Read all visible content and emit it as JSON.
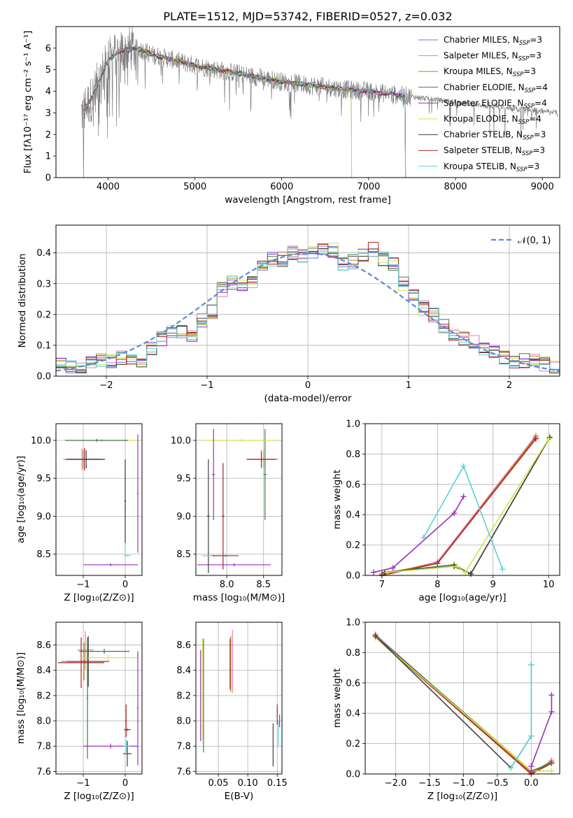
{
  "figure": {
    "title": "PLATE=1512, MJD=53742, FIBERID=0527, z=0.032"
  },
  "models": [
    {
      "label": "Chabrier MILES, N",
      "sub": "SSP",
      "tail": "=3",
      "color": "#6e7fd4"
    },
    {
      "label": "Salpeter MILES, N",
      "sub": "SSP",
      "tail": "=3",
      "color": "#e07fb5"
    },
    {
      "label": "Kroupa MILES, N",
      "sub": "SSP",
      "tail": "=3",
      "color": "#b8860b"
    },
    {
      "label": "Chabrier ELODIE, N",
      "sub": "SSP",
      "tail": "=4",
      "color": "#3a7d44"
    },
    {
      "label": "Salpeter ELODIE, N",
      "sub": "SSP",
      "tail": "=4",
      "color": "#9b30c0"
    },
    {
      "label": "Kroupa ELODIE, N",
      "sub": "SSP",
      "tail": "=4",
      "color": "#d8e04a"
    },
    {
      "label": "Chabrier STELIB, N",
      "sub": "SSP",
      "tail": "=3",
      "color": "#404040"
    },
    {
      "label": "Salpeter STELIB, N",
      "sub": "SSP",
      "tail": "=3",
      "color": "#b22222"
    },
    {
      "label": "Kroupa STELIB, N",
      "sub": "SSP",
      "tail": "=3",
      "color": "#5fd0d8"
    }
  ],
  "chart_data": [
    {
      "id": "spectrum",
      "type": "line",
      "xlabel": "wavelength [Angstrom, rest frame]",
      "ylabel": "Flux [fλ10⁻¹⁷ erg cm⁻² s⁻¹ A⁻¹]",
      "xlim": [
        3400,
        9200
      ],
      "ylim": [
        0,
        7
      ],
      "xticks": [
        4000,
        5000,
        6000,
        7000,
        8000,
        9000
      ],
      "yticks": [
        0,
        1,
        2,
        3,
        4,
        5,
        6
      ],
      "data_color": "#808080",
      "continuum": {
        "x": [
          3700,
          3800,
          3900,
          4000,
          4100,
          4200,
          4300,
          4400,
          4500,
          4600,
          4800,
          5000,
          5200,
          5400,
          5600,
          5800,
          6000,
          6200,
          6400,
          6600,
          6800,
          7000,
          7200,
          7400,
          7600,
          7800,
          8000,
          8200,
          8400,
          8600,
          8800,
          9000,
          9200
        ],
        "y": [
          3.0,
          3.6,
          4.5,
          5.4,
          5.8,
          5.9,
          6.0,
          5.9,
          5.7,
          5.6,
          5.4,
          5.2,
          5.05,
          4.9,
          4.75,
          4.6,
          4.45,
          4.35,
          4.25,
          4.15,
          4.05,
          4.0,
          3.9,
          3.8,
          3.7,
          3.6,
          3.5,
          3.4,
          3.3,
          3.2,
          3.15,
          3.05,
          3.0
        ]
      },
      "model_ends": [
        7420,
        7420,
        7420,
        6800,
        7420,
        6800,
        7420,
        7420,
        7420
      ]
    },
    {
      "id": "residual_hist",
      "type": "line",
      "xlabel": "(data-model)/error",
      "ylabel": "Normed distribution",
      "xlim": [
        -2.5,
        2.5
      ],
      "ylim": [
        0,
        0.49
      ],
      "xticks": [
        -2,
        -1,
        0,
        1,
        2
      ],
      "xtick_labels": [
        "−2",
        "−1",
        "0",
        "1",
        "2"
      ],
      "yticks": [
        0.0,
        0.1,
        0.2,
        0.3,
        0.4
      ],
      "ytick_labels": [
        "0.0",
        "0.1",
        "0.2",
        "0.3",
        "0.4"
      ],
      "legend": "𝒩(0, 1)",
      "bins": [
        -2.5,
        -2.4,
        -2.3,
        -2.2,
        -2.1,
        -2.0,
        -1.9,
        -1.8,
        -1.7,
        -1.6,
        -1.5,
        -1.4,
        -1.3,
        -1.2,
        -1.1,
        -1.0,
        -0.9,
        -0.8,
        -0.7,
        -0.6,
        -0.5,
        -0.4,
        -0.3,
        -0.2,
        -0.1,
        0.0,
        0.1,
        0.2,
        0.3,
        0.4,
        0.5,
        0.6,
        0.7,
        0.8,
        0.9,
        1.0,
        1.1,
        1.2,
        1.3,
        1.4,
        1.5,
        1.6,
        1.7,
        1.8,
        1.9,
        2.0,
        2.1,
        2.2,
        2.3,
        2.4,
        2.5
      ],
      "base_hist": [
        0.04,
        0.03,
        0.03,
        0.04,
        0.05,
        0.05,
        0.06,
        0.06,
        0.04,
        0.09,
        0.12,
        0.15,
        0.14,
        0.13,
        0.18,
        0.21,
        0.28,
        0.3,
        0.29,
        0.31,
        0.36,
        0.38,
        0.38,
        0.4,
        0.39,
        0.4,
        0.42,
        0.41,
        0.36,
        0.37,
        0.39,
        0.41,
        0.38,
        0.36,
        0.3,
        0.26,
        0.22,
        0.2,
        0.16,
        0.14,
        0.12,
        0.11,
        0.09,
        0.08,
        0.06,
        0.05,
        0.05,
        0.05,
        0.04,
        0.03
      ]
    },
    {
      "id": "age_vs_Z",
      "type": "scatter",
      "xlabel": "Z [log₁₀(Z/Z⊙)]",
      "ylabel": "age  [log₁₀(age/yr)]",
      "xlim": [
        -1.65,
        0.4
      ],
      "ylim": [
        8.22,
        10.22
      ],
      "xticks": [
        -1,
        0
      ],
      "xtick_labels": [
        "−1",
        "0"
      ],
      "yticks": [
        8.5,
        9.0,
        9.5,
        10.0
      ],
      "ytick_labels": [
        "8.5",
        "9.0",
        "9.5",
        "10.0"
      ],
      "errorbars": [
        {
          "m": 1,
          "x": -1.03,
          "y": 9.75,
          "xe": 0.45,
          "ye": 0.14
        },
        {
          "m": 2,
          "x": -1.0,
          "y": 9.75,
          "xe": 0.4,
          "ye": 0.12
        },
        {
          "m": 7,
          "x": -0.97,
          "y": 9.75,
          "xe": 0.45,
          "ye": 0.15
        },
        {
          "m": 6,
          "x": -0.93,
          "y": 9.75,
          "xe": 0.45,
          "ye": 0.12
        },
        {
          "m": 5,
          "x": -0.55,
          "y": 10.0,
          "xe": 0.85,
          "ye": 0.02
        },
        {
          "m": 3,
          "x": -0.68,
          "y": 10.0,
          "xe": 0.75,
          "ye": 0.02
        },
        {
          "m": 4,
          "x": -0.35,
          "y": 8.36,
          "xe": 0.65,
          "ye": 0.02
        },
        {
          "m": 4,
          "x": 0.3,
          "y": 9.3,
          "xe": 0.02,
          "ye": 0.78
        },
        {
          "m": 8,
          "x": 0.0,
          "y": 9.1,
          "xe": 0.02,
          "ye": 0.6
        },
        {
          "m": 6,
          "x": 0.0,
          "y": 9.2,
          "xe": 0.02,
          "ye": 0.55
        },
        {
          "m": 8,
          "x": 0.05,
          "y": 8.48,
          "xe": 0.08,
          "ye": 0.01
        }
      ]
    },
    {
      "id": "age_vs_mass",
      "type": "scatter",
      "xlabel": "mass [log₁₀(M/M⊙)]",
      "ylabel": "",
      "xlim": [
        7.58,
        8.75
      ],
      "ylim": [
        8.22,
        10.22
      ],
      "xticks": [
        8.0,
        8.5
      ],
      "xtick_labels": [
        "8.0",
        "8.5"
      ],
      "yticks": [
        8.5,
        9.0,
        9.5,
        10.0
      ],
      "ytick_labels": [
        "8.5",
        "9.0",
        "9.5",
        "10.0"
      ],
      "errorbars": [
        {
          "m": 1,
          "x": 8.5,
          "y": 9.75,
          "xe": 0.2,
          "ye": 0.12
        },
        {
          "m": 2,
          "x": 8.47,
          "y": 9.75,
          "xe": 0.2,
          "ye": 0.12
        },
        {
          "m": 7,
          "x": 8.47,
          "y": 9.75,
          "xe": 0.2,
          "ye": 0.1
        },
        {
          "m": 3,
          "x": 8.52,
          "y": 9.55,
          "xe": 0.02,
          "ye": 0.6
        },
        {
          "m": 5,
          "x": 8.2,
          "y": 10.0,
          "xe": 0.5,
          "ye": 0.02
        },
        {
          "m": 4,
          "x": 7.82,
          "y": 9.55,
          "xe": 0.02,
          "ye": 0.6
        },
        {
          "m": 4,
          "x": 8.1,
          "y": 8.36,
          "xe": 0.5,
          "ye": 0.02
        },
        {
          "m": 6,
          "x": 7.75,
          "y": 9.0,
          "xe": 0.02,
          "ye": 0.75
        },
        {
          "m": 7,
          "x": 7.95,
          "y": 9.0,
          "xe": 0.02,
          "ye": 0.7
        },
        {
          "m": 8,
          "x": 7.82,
          "y": 8.48,
          "xe": 0.15,
          "ye": 0.01
        },
        {
          "m": 7,
          "x": 7.98,
          "y": 8.48,
          "xe": 0.18,
          "ye": 0.01
        }
      ]
    },
    {
      "id": "weight_vs_age",
      "type": "line",
      "xlabel": "age  [log₁₀(age/yr)]",
      "ylabel": "mass weight",
      "xlim": [
        6.7,
        10.2
      ],
      "ylim": [
        0,
        1.0
      ],
      "xticks": [
        7,
        8,
        9,
        10
      ],
      "xtick_labels": [
        "7",
        "8",
        "9",
        "10"
      ],
      "yticks": [
        0.0,
        0.2,
        0.4,
        0.6,
        0.8,
        1.0
      ],
      "ytick_labels": [
        "0.0",
        "0.2",
        "0.4",
        "0.6",
        "0.8",
        "1.0"
      ],
      "series": [
        {
          "m": 0,
          "x": [
            7.0,
            8.0,
            9.77
          ],
          "y": [
            0.0,
            0.08,
            0.92
          ]
        },
        {
          "m": 1,
          "x": [
            7.0,
            8.0,
            9.77
          ],
          "y": [
            0.0,
            0.09,
            0.92
          ]
        },
        {
          "m": 2,
          "x": [
            7.0,
            8.0,
            9.77
          ],
          "y": [
            0.01,
            0.08,
            0.91
          ]
        },
        {
          "m": 7,
          "x": [
            7.0,
            8.0,
            9.77
          ],
          "y": [
            0.0,
            0.08,
            0.9
          ]
        },
        {
          "m": 3,
          "x": [
            7.05,
            8.3,
            8.6,
            10.02
          ],
          "y": [
            0.02,
            0.07,
            0.01,
            0.91
          ]
        },
        {
          "m": 6,
          "x": [
            7.05,
            8.3,
            8.6,
            10.02
          ],
          "y": [
            0.02,
            0.06,
            0.01,
            0.91
          ]
        },
        {
          "m": 5,
          "x": [
            7.1,
            8.35,
            8.5,
            10.0
          ],
          "y": [
            0.02,
            0.06,
            0.02,
            0.9
          ]
        },
        {
          "m": 4,
          "x": [
            6.85,
            7.2,
            8.3,
            8.47
          ],
          "y": [
            0.02,
            0.05,
            0.41,
            0.52
          ]
        },
        {
          "m": 8,
          "x": [
            7.75,
            8.47,
            9.17
          ],
          "y": [
            0.25,
            0.72,
            0.04
          ]
        }
      ]
    },
    {
      "id": "mass_vs_Z",
      "type": "scatter",
      "xlabel": "Z [log₁₀(Z/Z⊙)]",
      "ylabel": "mass [log₁₀(M/M⊙)]",
      "xlim": [
        -1.65,
        0.4
      ],
      "ylim": [
        7.58,
        8.78
      ],
      "xticks": [
        -1,
        0
      ],
      "xtick_labels": [
        "−1",
        "0"
      ],
      "yticks": [
        7.6,
        7.8,
        8.0,
        8.2,
        8.4,
        8.6
      ],
      "ytick_labels": [
        "7.6",
        "7.8",
        "8.0",
        "8.2",
        "8.4",
        "8.6"
      ],
      "errorbars": [
        {
          "m": 1,
          "x": -0.95,
          "y": 8.56,
          "xe": 0.2,
          "ye": 0.15
        },
        {
          "m": 2,
          "x": -0.98,
          "y": 8.47,
          "xe": 0.55,
          "ye": 0.15
        },
        {
          "m": 7,
          "x": -1.05,
          "y": 8.46,
          "xe": 0.55,
          "ye": 0.2
        },
        {
          "m": 6,
          "x": -0.88,
          "y": 8.47,
          "xe": 0.5,
          "ye": 0.2
        },
        {
          "m": 3,
          "x": -0.5,
          "y": 8.55,
          "xe": 0.6,
          "ye": 0.02
        },
        {
          "m": 5,
          "x": -0.4,
          "y": 8.5,
          "xe": 0.7,
          "ye": 0.02
        },
        {
          "m": 3,
          "x": -0.9,
          "y": 8.18,
          "xe": 0.02,
          "ye": 0.48
        },
        {
          "m": 4,
          "x": -0.35,
          "y": 7.8,
          "xe": 0.65,
          "ye": 0.02
        },
        {
          "m": 4,
          "x": 0.3,
          "y": 8.1,
          "xe": 0.02,
          "ye": 0.45
        },
        {
          "m": 7,
          "x": 0.02,
          "y": 8.0,
          "xe": 0.02,
          "ye": 0.13
        },
        {
          "m": 7,
          "x": 0.05,
          "y": 7.93,
          "xe": 0.08,
          "ye": 0.01
        },
        {
          "m": 6,
          "x": 0.05,
          "y": 7.74,
          "xe": 0.1,
          "ye": 0.1
        },
        {
          "m": 8,
          "x": 0.03,
          "y": 7.8,
          "xe": 0.08,
          "ye": 0.05
        }
      ]
    },
    {
      "id": "mass_vs_EBV",
      "type": "scatter",
      "xlabel": "E(B-V)",
      "ylabel": "",
      "xlim": [
        0.012,
        0.158
      ],
      "ylim": [
        7.58,
        8.78
      ],
      "xticks": [
        0.05,
        0.1,
        0.15
      ],
      "xtick_labels": [
        "0.05",
        "0.10",
        "0.15"
      ],
      "yticks": [
        7.6,
        7.8,
        8.0,
        8.2,
        8.4,
        8.6
      ],
      "ytick_labels": [
        "7.6",
        "7.8",
        "8.0",
        "8.2",
        "8.4",
        "8.6"
      ],
      "errorbars": [
        {
          "m": 4,
          "x": 0.02,
          "y": 8.2,
          "xe": 0.0,
          "ye": 0.36
        },
        {
          "m": 5,
          "x": 0.023,
          "y": 8.25,
          "xe": 0.0,
          "ye": 0.4
        },
        {
          "m": 3,
          "x": 0.025,
          "y": 8.2,
          "xe": 0.0,
          "ye": 0.45
        },
        {
          "m": 1,
          "x": 0.074,
          "y": 8.47,
          "xe": 0.0,
          "ye": 0.25
        },
        {
          "m": 2,
          "x": 0.071,
          "y": 8.45,
          "xe": 0.0,
          "ye": 0.22
        },
        {
          "m": 7,
          "x": 0.07,
          "y": 8.45,
          "xe": 0.0,
          "ye": 0.2
        },
        {
          "m": 6,
          "x": 0.143,
          "y": 7.81,
          "xe": 0.0,
          "ye": 0.17
        },
        {
          "m": 7,
          "x": 0.15,
          "y": 8.05,
          "xe": 0.0,
          "ye": 0.08
        },
        {
          "m": 8,
          "x": 0.152,
          "y": 7.9,
          "xe": 0.0,
          "ye": 0.1
        },
        {
          "m": 4,
          "x": 0.154,
          "y": 8.0,
          "xe": 0.0,
          "ye": 0.05
        }
      ]
    },
    {
      "id": "weight_vs_Z",
      "type": "line",
      "xlabel": "Z [log₁₀(Z/Z⊙)]",
      "ylabel": "mass weight",
      "xlim": [
        -2.45,
        0.42
      ],
      "ylim": [
        0,
        1.0
      ],
      "xticks": [
        -2.0,
        -1.5,
        -1.0,
        -0.5,
        0.0
      ],
      "xtick_labels": [
        "−2.0",
        "−1.5",
        "−1.0",
        "−0.5",
        "0.0"
      ],
      "yticks": [
        0.0,
        0.2,
        0.4,
        0.6,
        0.8,
        1.0
      ],
      "ytick_labels": [
        "0.0",
        "0.2",
        "0.4",
        "0.6",
        "0.8",
        "1.0"
      ],
      "series": [
        {
          "m": 0,
          "x": [
            -2.3,
            0.0,
            0.3
          ],
          "y": [
            0.92,
            0.0,
            0.08
          ]
        },
        {
          "m": 1,
          "x": [
            -2.3,
            0.0,
            0.3
          ],
          "y": [
            0.92,
            0.0,
            0.09
          ]
        },
        {
          "m": 2,
          "x": [
            -2.3,
            0.0,
            0.3
          ],
          "y": [
            0.91,
            0.01,
            0.08
          ]
        },
        {
          "m": 7,
          "x": [
            -2.3,
            0.0,
            0.3
          ],
          "y": [
            0.9,
            0.0,
            0.07
          ]
        },
        {
          "m": 3,
          "x": [
            -2.3,
            0.0,
            0.3
          ],
          "y": [
            0.91,
            0.02,
            0.07
          ]
        },
        {
          "m": 5,
          "x": [
            -2.3,
            0.0,
            0.3
          ],
          "y": [
            0.9,
            0.02,
            0.02
          ]
        },
        {
          "m": 6,
          "x": [
            -2.3,
            -0.3,
            0.0,
            0.0
          ],
          "y": [
            0.91,
            0.04,
            0.25,
            0.72
          ]
        },
        {
          "m": 8,
          "x": [
            -0.3,
            0.0,
            0.0
          ],
          "y": [
            0.04,
            0.25,
            0.72
          ]
        },
        {
          "m": 4,
          "x": [
            0.0,
            0.0,
            0.3,
            0.3
          ],
          "y": [
            0.02,
            0.05,
            0.41,
            0.52
          ]
        }
      ]
    }
  ]
}
